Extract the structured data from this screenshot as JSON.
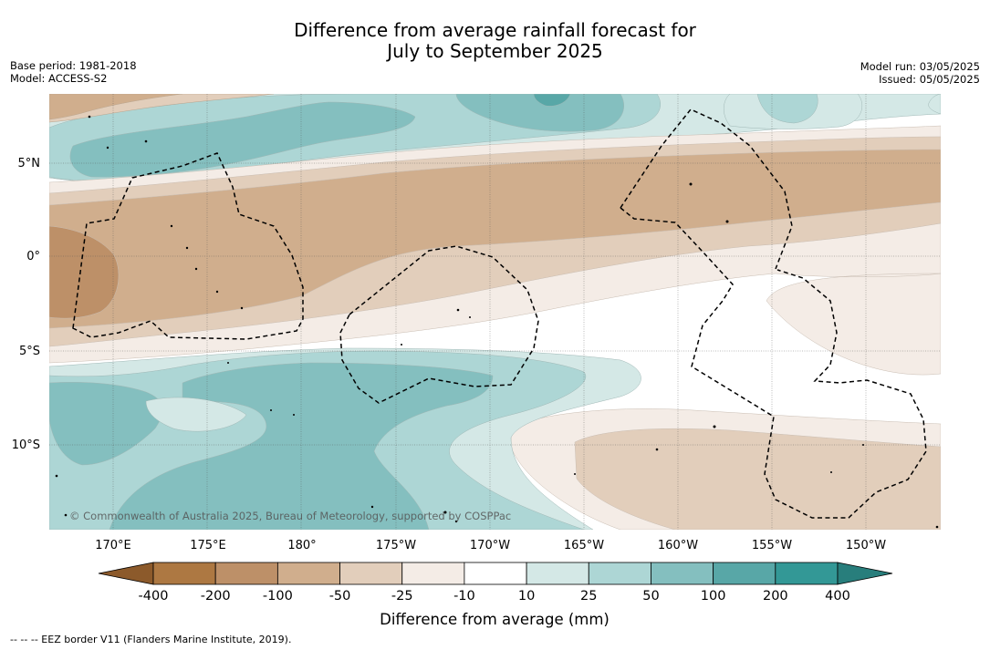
{
  "title": {
    "line1": "Difference from average rainfall forecast for",
    "line2": "July to September 2025"
  },
  "meta": {
    "base_period": "Base period: 1981-2018",
    "model": "Model: ACCESS-S2",
    "model_run": "Model run: 03/05/2025",
    "issued": "Issued: 05/05/2025"
  },
  "map": {
    "lat_labels": [
      "5°N",
      "0°",
      "5°S",
      "10°S"
    ],
    "lon_labels": [
      "170°E",
      "175°E",
      "180°",
      "175°W",
      "170°W",
      "165°W",
      "160°W",
      "155°W",
      "150°W"
    ],
    "copyright": "© Commonwealth of Australia 2025, Bureau of Meteorology, supported by COSPPac",
    "eez_line_style": "dashed black"
  },
  "legend": {
    "tick_labels": [
      "-400",
      "-200",
      "-100",
      "-50",
      "-25",
      "-10",
      "10",
      "25",
      "50",
      "100",
      "200",
      "400"
    ],
    "colors": [
      "#8c5a2b",
      "#ad7842",
      "#bd9068",
      "#d0ae8d",
      "#e2cebb",
      "#f4ece6",
      "#ffffff",
      "#d4e8e6",
      "#add6d5",
      "#84bfbf",
      "#58a7a7",
      "#339896",
      "#287e7c"
    ],
    "label": "Difference from average (mm)"
  },
  "footnote": "--  --  -- EEZ border V11 (Flanders Marine Institute, 2019)."
}
